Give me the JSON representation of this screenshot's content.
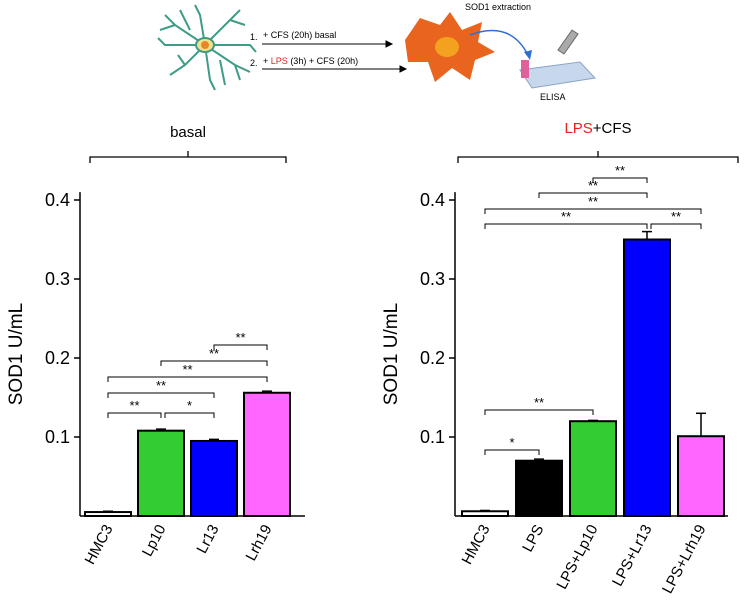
{
  "schematic": {
    "step1": {
      "number": "1.",
      "text": "+ CFS (20h) basal"
    },
    "step2": {
      "number": "2.",
      "prefix": "+",
      "highlight": "LPS",
      "suffix": "(3h) + CFS (20h)",
      "highlight_color": "#e8211f"
    },
    "extraction": "SOD1 extraction",
    "assay": "ELISA"
  },
  "chart_data": [
    {
      "type": "bar",
      "group_label": "basal",
      "ylabel": "SOD1 U/mL",
      "categories": [
        "HMC3",
        "Lp10",
        "Lr13",
        "Lrh19"
      ],
      "values": [
        0.005,
        0.108,
        0.095,
        0.156
      ],
      "errors": [
        0.001,
        0.002,
        0.002,
        0.002
      ],
      "colors": [
        "#ffffff",
        "#33cc33",
        "#0000ff",
        "#ff66ff"
      ],
      "ylim": [
        0,
        0.41
      ],
      "yticks": [
        0.1,
        0.2,
        0.3,
        0.4
      ],
      "significance": [
        {
          "from": 0,
          "to": 1,
          "label": "**"
        },
        {
          "from": 1,
          "to": 2,
          "label": "*"
        },
        {
          "from": 0,
          "to": 2,
          "label": "**"
        },
        {
          "from": 0,
          "to": 3,
          "label": "**"
        },
        {
          "from": 1,
          "to": 3,
          "label": "**"
        },
        {
          "from": 2,
          "to": 3,
          "label": "**"
        }
      ]
    },
    {
      "type": "bar",
      "group_label_parts": [
        "LPS",
        "+CFS"
      ],
      "group_label_highlight_color": "#e8211f",
      "ylabel": "SOD1 U/mL",
      "categories": [
        "HMC3",
        "LPS",
        "LPS+Lp10",
        "LPS+Lr13",
        "LPS+Lrh19"
      ],
      "values": [
        0.006,
        0.07,
        0.12,
        0.35,
        0.101
      ],
      "errors": [
        0.001,
        0.002,
        0.001,
        0.01,
        0.029
      ],
      "colors": [
        "#ffffff",
        "#000000",
        "#33cc33",
        "#0000ff",
        "#ff66ff"
      ],
      "ylim": [
        0,
        0.41
      ],
      "yticks": [
        0.1,
        0.2,
        0.3,
        0.4
      ],
      "significance": [
        {
          "from": 0,
          "to": 1,
          "label": "*"
        },
        {
          "from": 0,
          "to": 2,
          "label": "**"
        },
        {
          "from": 0,
          "to": 3,
          "label": "**"
        },
        {
          "from": 3,
          "to": 4,
          "label": "**"
        },
        {
          "from": 0,
          "to": 4,
          "label": "**"
        },
        {
          "from": 1,
          "to": 3,
          "label": "**"
        },
        {
          "from": 2,
          "to": 3,
          "label": "**"
        }
      ]
    }
  ]
}
